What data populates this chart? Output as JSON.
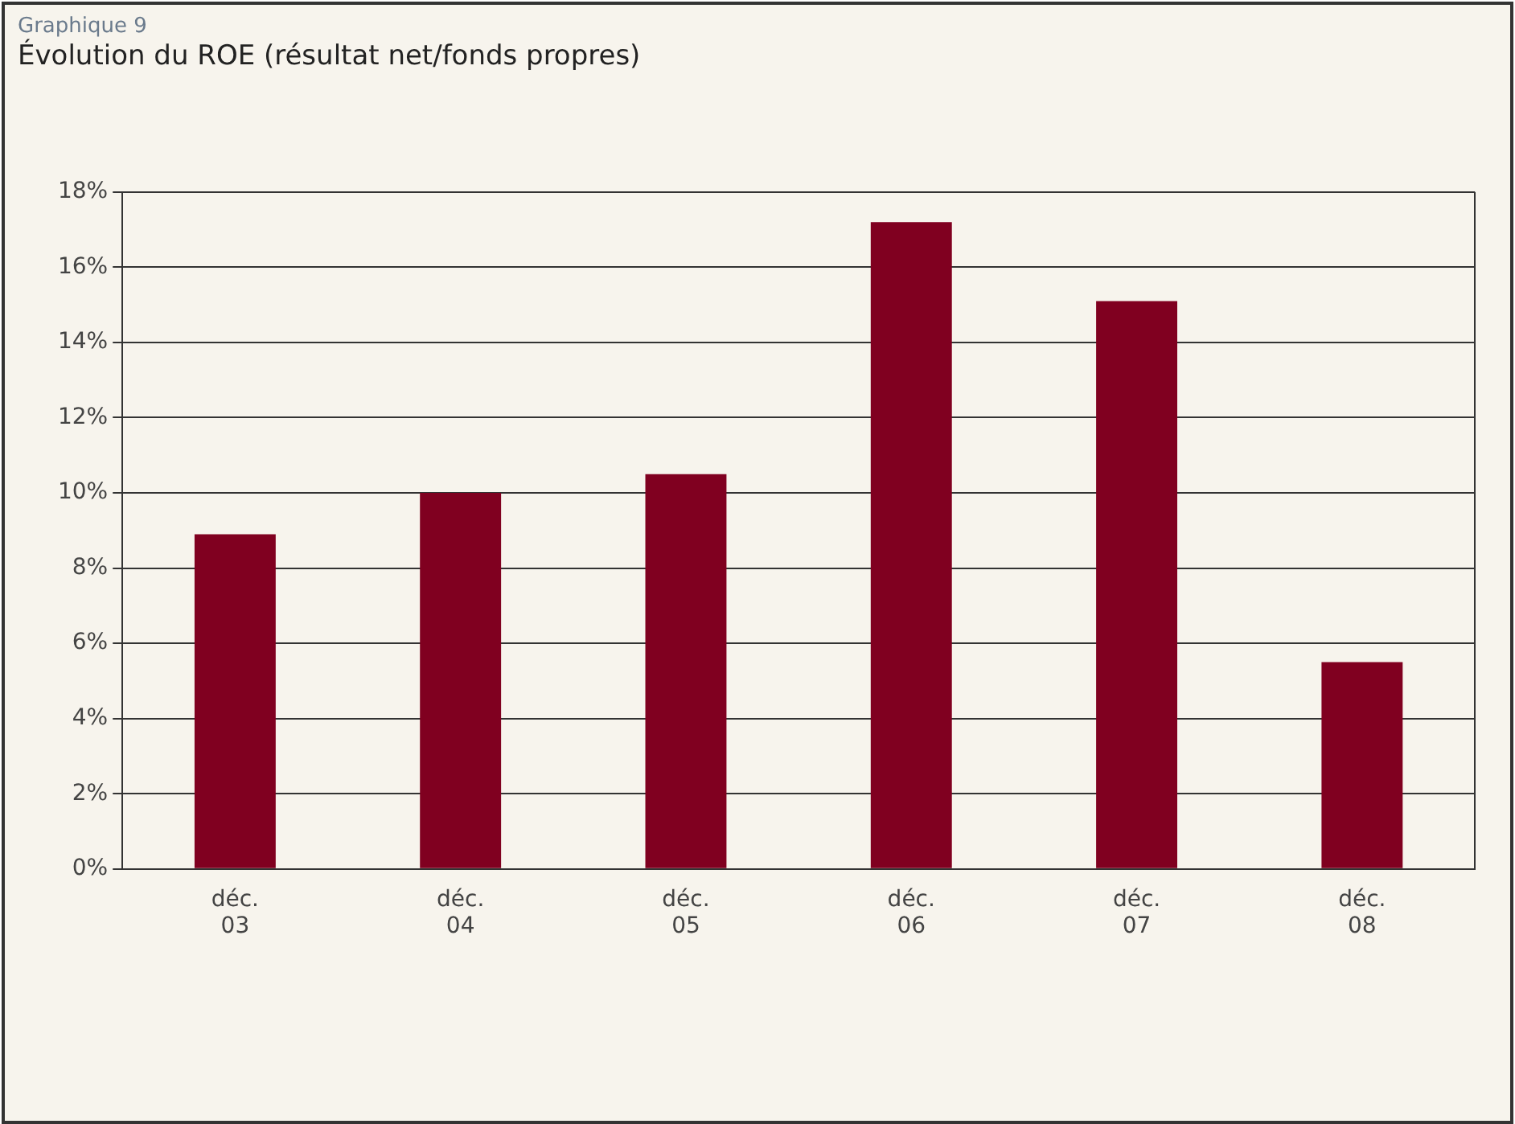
{
  "chart_data": {
    "type": "bar",
    "subtitle": "Graphique 9",
    "title": "Évolution du ROE (résultat net/fonds propres)",
    "categories": [
      "déc. 03",
      "déc. 04",
      "déc. 05",
      "déc. 06",
      "déc. 07",
      "déc. 08"
    ],
    "values": [
      8.9,
      10.0,
      10.5,
      17.2,
      15.1,
      5.5
    ],
    "color": "#800020",
    "ylim": [
      0,
      18
    ],
    "yticks": [
      {
        "value": 0,
        "label": "0%"
      },
      {
        "value": 2,
        "label": "2%"
      },
      {
        "value": 4,
        "label": "4%"
      },
      {
        "value": 6,
        "label": "6%"
      },
      {
        "value": 8,
        "label": "8%"
      },
      {
        "value": 10,
        "label": "10%"
      },
      {
        "value": 12,
        "label": "12%"
      },
      {
        "value": 14,
        "label": "14%"
      },
      {
        "value": 16,
        "label": "16%"
      },
      {
        "value": 18,
        "label": "18%"
      }
    ],
    "grid": "y"
  }
}
